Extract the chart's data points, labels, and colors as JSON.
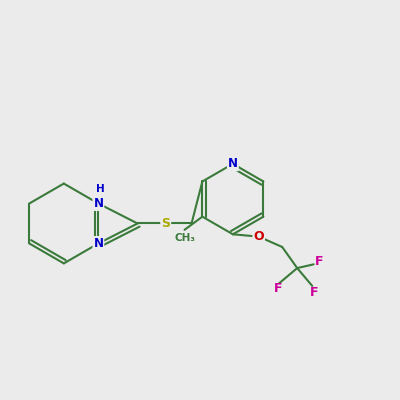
{
  "background_color": "#ebebeb",
  "bond_color": "#3a7a3a",
  "bond_width": 1.5,
  "colors": {
    "N": "#0000cc",
    "S": "#aaaa00",
    "O": "#cc0000",
    "F": "#cc0099",
    "C": "#3a7a3a"
  },
  "figsize": [
    4.0,
    4.0
  ],
  "dpi": 100
}
